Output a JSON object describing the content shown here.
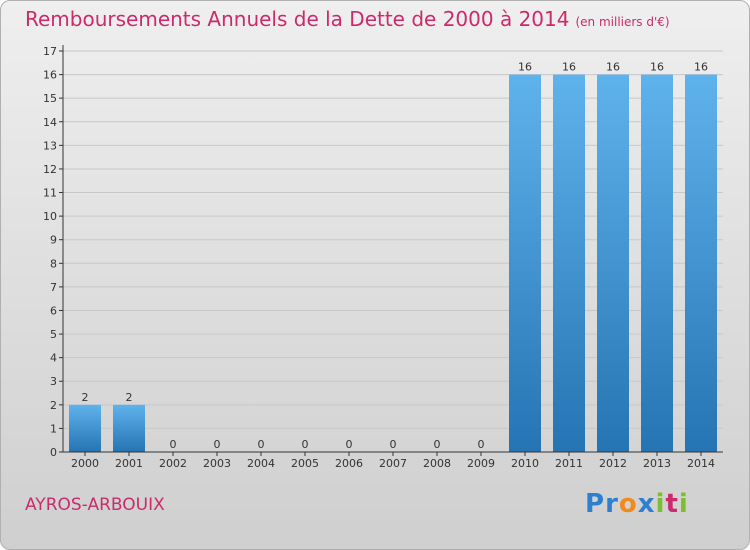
{
  "title": "Remboursements Annuels de la Dette de 2000 à 2014",
  "unit": "(en milliers d'€)",
  "commune": "AYROS-ARBOUIX",
  "logo": "Proxiti",
  "colors": {
    "title": "#cc2a6b",
    "bar_light": "#5aaee8",
    "bar_dark": "#2a7ab8",
    "grid": "#c8c8c8",
    "axis": "#333333"
  },
  "chart_data": {
    "type": "bar",
    "categories": [
      "2000",
      "2001",
      "2002",
      "2003",
      "2004",
      "2005",
      "2006",
      "2007",
      "2008",
      "2009",
      "2010",
      "2011",
      "2012",
      "2013",
      "2014"
    ],
    "values": [
      2,
      2,
      0,
      0,
      0,
      0,
      0,
      0,
      0,
      0,
      16,
      16,
      16,
      16,
      16
    ],
    "ylim": [
      0,
      17
    ],
    "yticks": [
      0,
      1,
      2,
      3,
      4,
      5,
      6,
      7,
      8,
      9,
      10,
      11,
      12,
      13,
      14,
      15,
      16,
      17
    ],
    "grid": true,
    "xlabel": "",
    "ylabel": ""
  }
}
